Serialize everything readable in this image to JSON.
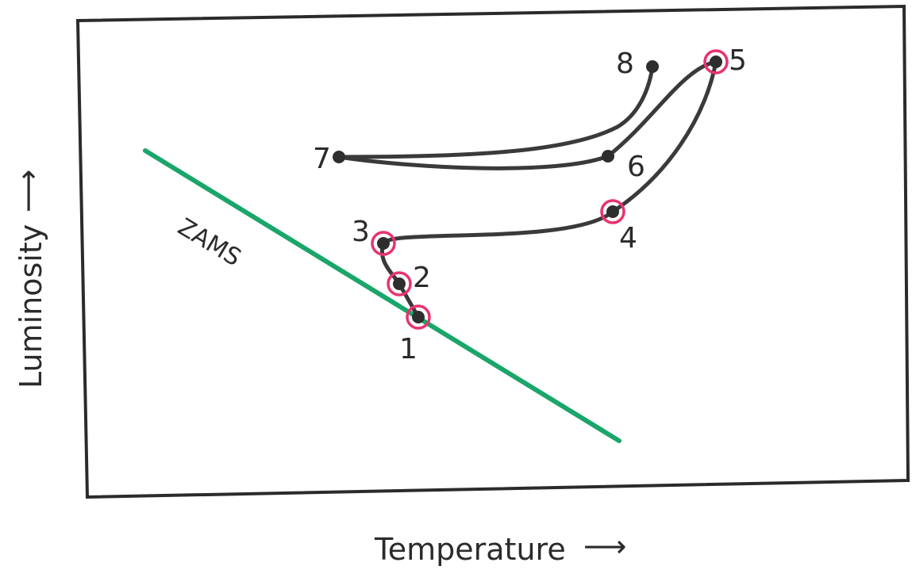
{
  "diagram": {
    "x_axis_label": "Temperature",
    "y_axis_label": "Luminosity",
    "arrow_glyph": "⟶",
    "reference_line_label": "ZAMS",
    "points": [
      {
        "id": "1",
        "label": "1",
        "highlighted": true
      },
      {
        "id": "2",
        "label": "2",
        "highlighted": true
      },
      {
        "id": "3",
        "label": "3",
        "highlighted": true
      },
      {
        "id": "4",
        "label": "4",
        "highlighted": true
      },
      {
        "id": "5",
        "label": "5",
        "highlighted": true
      },
      {
        "id": "6",
        "label": "6",
        "highlighted": false
      },
      {
        "id": "7",
        "label": "7",
        "highlighted": false
      },
      {
        "id": "8",
        "label": "8",
        "highlighted": false
      }
    ],
    "colors": {
      "frame": "#2b2b2b",
      "track": "#3a3a3a",
      "zams_line": "#1aa66a",
      "highlight_ring": "#e8336d"
    }
  }
}
